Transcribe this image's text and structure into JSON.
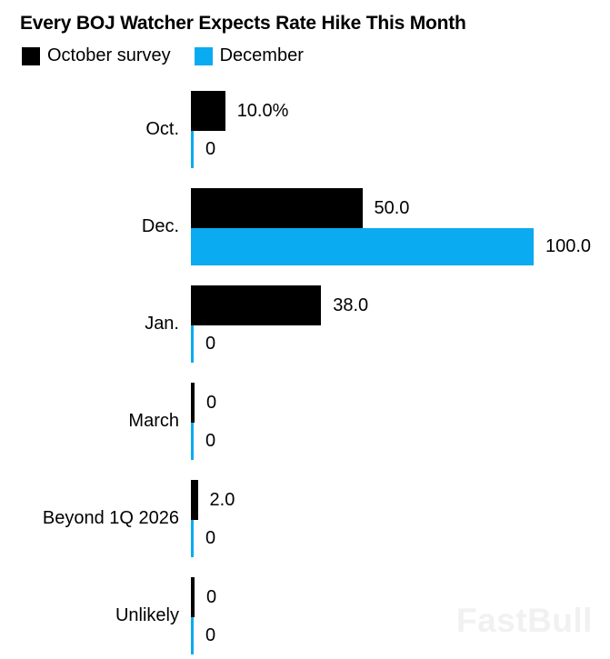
{
  "title": "Every BOJ Watcher Expects Rate Hike This Month",
  "legend": {
    "items": [
      {
        "label": "October survey",
        "color": "#000000"
      },
      {
        "label": "December",
        "color": "#0aabf0"
      }
    ]
  },
  "watermark": "FastBull",
  "colors": {
    "october_series": "#000000",
    "december_series": "#0aabf0",
    "watermark": "#f1f1f1",
    "background": "#ffffff",
    "text": "#000000"
  },
  "chart_data": {
    "type": "bar",
    "orientation": "horizontal",
    "title": "Every BOJ Watcher Expects Rate Hike This Month",
    "categories": [
      "Oct.",
      "Dec.",
      "Jan.",
      "March",
      "Beyond 1Q 2026",
      "Unlikely"
    ],
    "series": [
      {
        "name": "October survey",
        "color": "#000000",
        "values": [
          10.0,
          50.0,
          38.0,
          0,
          2.0,
          0
        ],
        "value_labels": [
          "10.0%",
          "50.0",
          "38.0",
          "0",
          "2.0",
          "0"
        ]
      },
      {
        "name": "December",
        "color": "#0aabf0",
        "values": [
          0,
          100.0,
          0,
          0,
          0,
          0
        ],
        "value_labels": [
          "0",
          "100.0",
          "0",
          "0",
          "0",
          "0"
        ]
      }
    ],
    "xlim": [
      0,
      100
    ],
    "grid": false,
    "axis_shown": false,
    "legend_position": "top-left",
    "value_labels_shown": true
  }
}
